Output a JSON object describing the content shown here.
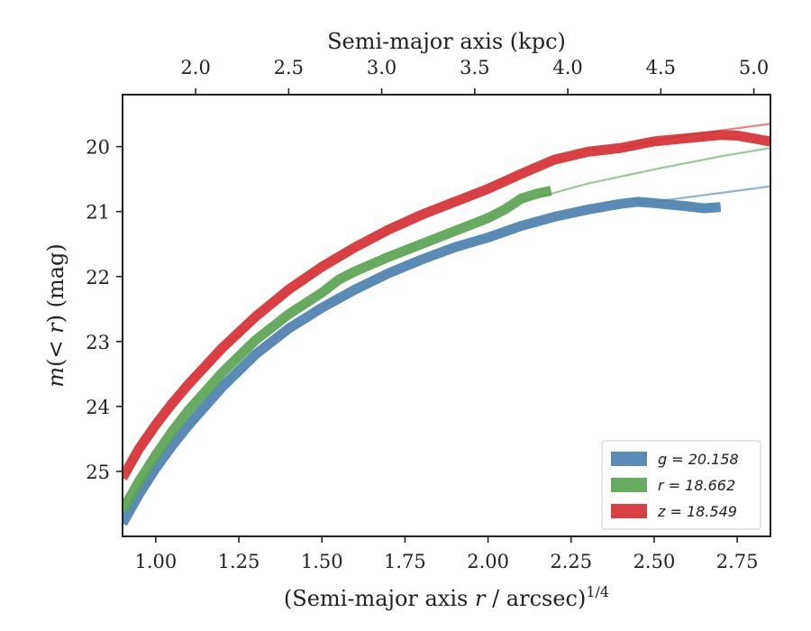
{
  "chart_data": {
    "type": "line",
    "xlabel": "(Semi-major axis r / arcsec)^1/4",
    "ylabel": "m(< r) (mag)",
    "top_xlabel": "Semi-major axis (kpc)",
    "xlim": [
      0.9,
      2.85
    ],
    "ylim": [
      26.0,
      19.2
    ],
    "x_ticks": [
      1.0,
      1.25,
      1.5,
      1.75,
      2.0,
      2.25,
      2.5,
      2.75
    ],
    "x_tick_labels": [
      "1.00",
      "1.25",
      "1.50",
      "1.75",
      "2.00",
      "2.25",
      "2.50",
      "2.75"
    ],
    "y_ticks": [
      20,
      21,
      22,
      23,
      24,
      25
    ],
    "y_tick_labels": [
      "20",
      "21",
      "22",
      "23",
      "24",
      "25"
    ],
    "top_ticks_kpc": [
      2.0,
      2.5,
      3.0,
      3.5,
      4.0,
      4.5,
      5.0
    ],
    "top_tick_labels": [
      "2.0",
      "2.5",
      "3.0",
      "3.5",
      "4.0",
      "4.5",
      "5.0"
    ],
    "top_tick_x": [
      1.12,
      1.4,
      1.68,
      1.96,
      2.24,
      2.52,
      2.8
    ],
    "legend_position": "bottom-right",
    "series": [
      {
        "name": "g = 20.158",
        "color": "#4c81b0",
        "x": [
          0.9,
          0.95,
          1.0,
          1.05,
          1.1,
          1.2,
          1.3,
          1.4,
          1.5,
          1.6,
          1.7,
          1.8,
          1.9,
          2.0,
          2.1,
          2.2,
          2.3,
          2.4,
          2.45,
          2.5,
          2.6,
          2.65,
          2.7
        ],
        "y": [
          25.8,
          25.35,
          24.95,
          24.6,
          24.28,
          23.7,
          23.2,
          22.8,
          22.48,
          22.2,
          21.95,
          21.74,
          21.55,
          21.4,
          21.22,
          21.08,
          20.97,
          20.88,
          20.85,
          20.87,
          20.92,
          20.95,
          20.93
        ],
        "fit_x": [
          2.45,
          2.6,
          2.75,
          2.85
        ],
        "fit_y": [
          20.88,
          20.78,
          20.68,
          20.61
        ]
      },
      {
        "name": "r = 18.662",
        "color": "#59a453",
        "x": [
          0.9,
          0.95,
          1.0,
          1.05,
          1.1,
          1.2,
          1.3,
          1.4,
          1.5,
          1.55,
          1.6,
          1.7,
          1.8,
          1.9,
          2.0,
          2.05,
          2.1,
          2.15,
          2.19
        ],
        "y": [
          25.6,
          25.15,
          24.75,
          24.38,
          24.05,
          23.48,
          22.98,
          22.58,
          22.25,
          22.05,
          21.92,
          21.7,
          21.5,
          21.3,
          21.1,
          20.97,
          20.8,
          20.72,
          20.68
        ],
        "fit_x": [
          2.1,
          2.3,
          2.5,
          2.7,
          2.85
        ],
        "fit_y": [
          20.85,
          20.57,
          20.35,
          20.15,
          20.02
        ]
      },
      {
        "name": "z = 18.549",
        "color": "#d62f33",
        "x": [
          0.9,
          0.95,
          1.0,
          1.05,
          1.1,
          1.2,
          1.3,
          1.4,
          1.5,
          1.6,
          1.7,
          1.8,
          1.9,
          2.0,
          2.1,
          2.2,
          2.3,
          2.4,
          2.5,
          2.6,
          2.7,
          2.75,
          2.85
        ],
        "y": [
          25.1,
          24.65,
          24.28,
          23.95,
          23.65,
          23.1,
          22.62,
          22.2,
          21.85,
          21.55,
          21.28,
          21.05,
          20.85,
          20.65,
          20.42,
          20.2,
          20.08,
          20.02,
          19.92,
          19.87,
          19.82,
          19.83,
          19.92
        ],
        "fit_x": [
          2.4,
          2.6,
          2.85
        ],
        "fit_y": [
          20.02,
          19.82,
          19.65
        ]
      }
    ]
  }
}
